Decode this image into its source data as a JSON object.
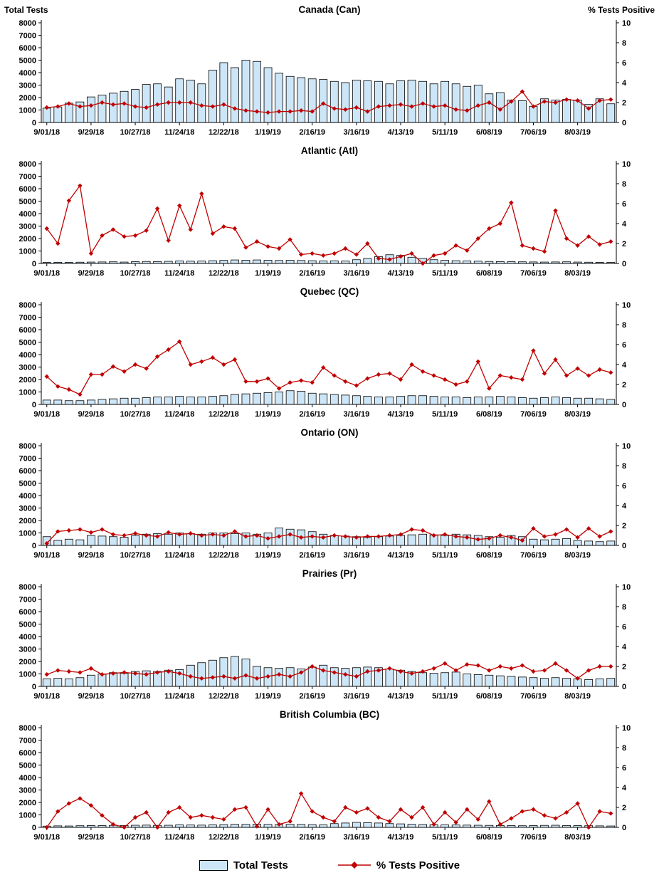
{
  "axis_titles": {
    "left": "Total Tests",
    "right": "% Tests  Positive"
  },
  "legend": {
    "bars": "Total Tests",
    "line": "% Tests Positive"
  },
  "style": {
    "bar_fill": "#CDE6F7",
    "bar_stroke": "#000000",
    "line_color": "#C00000",
    "axis_color": "#000000"
  },
  "x_tick_step": 4,
  "categories": [
    "9/01/18",
    "9/08/18",
    "9/15/18",
    "9/22/18",
    "9/29/18",
    "10/06/18",
    "10/13/18",
    "10/20/18",
    "10/27/18",
    "11/03/18",
    "11/10/18",
    "11/17/18",
    "11/24/18",
    "12/01/18",
    "12/08/18",
    "12/15/18",
    "12/22/18",
    "12/29/18",
    "1/05/19",
    "1/12/19",
    "1/19/19",
    "1/26/19",
    "2/02/19",
    "2/09/19",
    "2/16/19",
    "2/23/19",
    "3/02/19",
    "3/09/19",
    "3/16/19",
    "3/23/19",
    "3/30/19",
    "4/06/19",
    "4/13/19",
    "4/20/19",
    "4/27/19",
    "5/04/19",
    "5/11/19",
    "5/18/19",
    "5/25/19",
    "6/01/19",
    "6/08/19",
    "6/15/19",
    "6/22/19",
    "6/29/19",
    "7/06/19",
    "7/13/19",
    "7/20/19",
    "7/27/19",
    "8/03/19",
    "8/10/19",
    "8/17/19",
    "8/24/19"
  ],
  "x_tick_labels": [
    "9/01/18",
    "9/29/18",
    "10/27/18",
    "11/24/18",
    "12/22/18",
    "1/19/19",
    "2/16/19",
    "3/16/19",
    "4/13/19",
    "5/11/19",
    "6/08/19",
    "7/06/19",
    "8/03/19"
  ],
  "chart_data": [
    {
      "type": "bar",
      "title": "Canada (Can)",
      "ylabel_left": "Total Tests",
      "ylabel_right": "% Tests Positive",
      "ylim_left": [
        0,
        8000
      ],
      "ylim_right": [
        0,
        10
      ],
      "bars": {
        "name": "Total Tests",
        "values": [
          1150,
          1250,
          1550,
          1650,
          2050,
          2200,
          2350,
          2500,
          2650,
          3050,
          3100,
          2850,
          3500,
          3400,
          3100,
          4200,
          4800,
          4400,
          5000,
          4900,
          4400,
          3950,
          3700,
          3600,
          3500,
          3450,
          3300,
          3200,
          3400,
          3350,
          3300,
          3100,
          3350,
          3400,
          3300,
          3100,
          3300,
          3100,
          2900,
          3000,
          2300,
          2400,
          1800,
          1750,
          1300,
          1900,
          1800,
          1850,
          1800,
          1450,
          1900,
          1500
        ]
      },
      "line": {
        "name": "% Tests Positive",
        "values": [
          1.5,
          1.6,
          1.9,
          1.6,
          1.7,
          2.0,
          1.8,
          1.9,
          1.6,
          1.5,
          1.8,
          2.0,
          2.0,
          2.0,
          1.7,
          1.6,
          1.8,
          1.4,
          1.2,
          1.1,
          1.0,
          1.1,
          1.1,
          1.2,
          1.1,
          1.9,
          1.4,
          1.3,
          1.5,
          1.1,
          1.6,
          1.7,
          1.8,
          1.6,
          1.9,
          1.6,
          1.7,
          1.3,
          1.2,
          1.7,
          2.0,
          1.3,
          2.1,
          3.1,
          1.6,
          2.1,
          2.0,
          2.3,
          2.2,
          1.4,
          2.2,
          2.3
        ]
      }
    },
    {
      "type": "bar",
      "title": "Atlantic (Atl)",
      "ylabel_left": "Total Tests",
      "ylabel_right": "% Tests Positive",
      "ylim_left": [
        0,
        8000
      ],
      "ylim_right": [
        0,
        10
      ],
      "bars": {
        "name": "Total Tests",
        "values": [
          80,
          90,
          80,
          100,
          110,
          120,
          130,
          110,
          140,
          160,
          150,
          170,
          200,
          180,
          190,
          220,
          250,
          280,
          260,
          280,
          260,
          240,
          260,
          240,
          220,
          200,
          210,
          190,
          300,
          400,
          550,
          700,
          650,
          500,
          400,
          300,
          250,
          220,
          200,
          180,
          160,
          150,
          140,
          130,
          120,
          110,
          120,
          130,
          110,
          100,
          90,
          80
        ]
      },
      "line": {
        "name": "% Tests Positive",
        "values": [
          3.5,
          2.0,
          6.3,
          7.8,
          1.0,
          2.8,
          3.4,
          2.7,
          2.8,
          3.3,
          5.5,
          2.3,
          5.8,
          3.4,
          7.0,
          3.0,
          3.7,
          3.5,
          1.6,
          2.2,
          1.7,
          1.5,
          2.4,
          0.9,
          1.0,
          0.8,
          1.0,
          1.5,
          0.9,
          2.0,
          0.5,
          0.4,
          0.7,
          1.0,
          0.0,
          0.8,
          1.0,
          1.8,
          1.3,
          2.5,
          3.5,
          4.0,
          6.1,
          1.8,
          1.5,
          1.2,
          5.3,
          2.5,
          1.8,
          2.7,
          1.9,
          2.2
        ]
      }
    },
    {
      "type": "bar",
      "title": "Quebec (QC)",
      "ylabel_left": "Total Tests",
      "ylabel_right": "% Tests Positive",
      "ylim_left": [
        0,
        8000
      ],
      "ylim_right": [
        0,
        10
      ],
      "bars": {
        "name": "Total Tests",
        "values": [
          350,
          350,
          300,
          300,
          350,
          400,
          450,
          500,
          500,
          550,
          600,
          600,
          650,
          600,
          600,
          650,
          700,
          800,
          850,
          900,
          950,
          1000,
          1100,
          1050,
          900,
          850,
          800,
          750,
          700,
          650,
          600,
          600,
          650,
          700,
          700,
          650,
          600,
          600,
          550,
          600,
          600,
          650,
          600,
          550,
          500,
          550,
          600,
          550,
          500,
          500,
          450,
          400
        ]
      },
      "line": {
        "name": "% Tests Positive",
        "values": [
          2.8,
          1.8,
          1.5,
          1.0,
          3.0,
          3.0,
          3.8,
          3.3,
          4.0,
          3.6,
          4.8,
          5.5,
          6.3,
          4.0,
          4.3,
          4.7,
          4.0,
          4.5,
          2.3,
          2.3,
          2.6,
          1.6,
          2.2,
          2.4,
          2.2,
          3.7,
          2.9,
          2.3,
          1.9,
          2.6,
          3.0,
          3.1,
          2.5,
          4.0,
          3.3,
          2.9,
          2.5,
          2.0,
          2.3,
          4.3,
          1.6,
          2.9,
          2.7,
          2.5,
          5.4,
          3.1,
          4.5,
          2.9,
          3.6,
          2.9,
          3.5,
          3.2
        ]
      }
    },
    {
      "type": "bar",
      "title": "Ontario (ON)",
      "ylabel_left": "Total Tests",
      "ylabel_right": "% Tests Positive",
      "ylim_left": [
        0,
        8000
      ],
      "ylim_right": [
        0,
        10
      ],
      "bars": {
        "name": "Total Tests",
        "values": [
          700,
          400,
          500,
          450,
          800,
          750,
          700,
          650,
          800,
          900,
          950,
          900,
          1000,
          950,
          900,
          1000,
          1000,
          950,
          1000,
          900,
          1000,
          1400,
          1300,
          1250,
          1100,
          900,
          800,
          750,
          700,
          650,
          700,
          750,
          800,
          850,
          900,
          850,
          800,
          900,
          850,
          800,
          700,
          650,
          800,
          700,
          500,
          450,
          500,
          550,
          400,
          350,
          300,
          350
        ]
      },
      "line": {
        "name": "% Tests Positive",
        "values": [
          0.2,
          1.4,
          1.5,
          1.6,
          1.3,
          1.6,
          1.1,
          1.0,
          1.2,
          1.0,
          0.9,
          1.3,
          1.1,
          1.2,
          1.0,
          1.1,
          1.0,
          1.4,
          0.9,
          1.0,
          0.7,
          0.9,
          1.1,
          0.8,
          0.9,
          0.8,
          1.0,
          0.9,
          0.8,
          0.9,
          0.9,
          1.0,
          1.1,
          1.6,
          1.5,
          1.0,
          1.1,
          0.9,
          0.8,
          0.6,
          0.7,
          1.0,
          0.8,
          0.5,
          1.7,
          0.9,
          1.1,
          1.6,
          0.8,
          1.7,
          0.9,
          1.4
        ]
      }
    },
    {
      "type": "bar",
      "title": "Prairies (Pr)",
      "ylabel_left": "Total Tests",
      "ylabel_right": "% Tests Positive",
      "ylim_left": [
        0,
        8000
      ],
      "ylim_right": [
        0,
        10
      ],
      "bars": {
        "name": "Total Tests",
        "values": [
          600,
          650,
          600,
          700,
          900,
          1000,
          1100,
          1050,
          1200,
          1250,
          1200,
          1300,
          1350,
          1700,
          1900,
          2100,
          2300,
          2400,
          2200,
          1600,
          1500,
          1450,
          1500,
          1400,
          1550,
          1700,
          1500,
          1450,
          1500,
          1550,
          1500,
          1400,
          1300,
          1200,
          1100,
          1050,
          1100,
          1150,
          1000,
          950,
          900,
          850,
          800,
          750,
          700,
          650,
          700,
          650,
          600,
          550,
          600,
          650
        ]
      },
      "line": {
        "name": "% Tests Positive",
        "values": [
          1.2,
          1.6,
          1.5,
          1.4,
          1.8,
          1.2,
          1.3,
          1.4,
          1.3,
          1.2,
          1.4,
          1.5,
          1.3,
          1.0,
          0.8,
          0.9,
          1.0,
          0.8,
          1.1,
          0.8,
          1.0,
          1.2,
          1.0,
          1.4,
          2.0,
          1.6,
          1.4,
          1.2,
          1.0,
          1.5,
          1.6,
          1.8,
          1.5,
          1.3,
          1.5,
          1.8,
          2.3,
          1.6,
          2.2,
          2.1,
          1.6,
          2.0,
          1.8,
          2.1,
          1.5,
          1.6,
          2.3,
          1.6,
          0.8,
          1.6,
          2.0,
          2.0
        ]
      }
    },
    {
      "type": "bar",
      "title": "British Columbia (BC)",
      "ylabel_left": "Total Tests",
      "ylabel_right": "% Tests Positive",
      "ylim_left": [
        0,
        8000
      ],
      "ylim_right": [
        0,
        10
      ],
      "bars": {
        "name": "Total Tests",
        "values": [
          100,
          120,
          110,
          130,
          150,
          140,
          160,
          150,
          170,
          180,
          160,
          170,
          200,
          190,
          180,
          200,
          220,
          250,
          240,
          260,
          240,
          230,
          250,
          240,
          220,
          200,
          300,
          350,
          400,
          380,
          350,
          300,
          280,
          250,
          230,
          220,
          200,
          190,
          180,
          170,
          160,
          150,
          140,
          130,
          150,
          160,
          170,
          150,
          140,
          130,
          120,
          110
        ]
      },
      "line": {
        "name": "% Tests Positive",
        "values": [
          0.0,
          1.6,
          2.4,
          2.9,
          2.2,
          1.2,
          0.3,
          0.0,
          1.0,
          1.5,
          0.0,
          1.5,
          2.0,
          1.0,
          1.2,
          1.0,
          0.8,
          1.8,
          2.0,
          0.1,
          1.8,
          0.3,
          0.6,
          3.4,
          1.6,
          1.0,
          0.6,
          2.0,
          1.5,
          1.9,
          1.0,
          0.6,
          1.8,
          1.0,
          2.0,
          0.3,
          1.5,
          0.5,
          1.8,
          0.8,
          2.6,
          0.3,
          0.9,
          1.6,
          1.8,
          1.2,
          0.9,
          1.5,
          2.4,
          0.0,
          1.6,
          1.4
        ]
      }
    }
  ]
}
